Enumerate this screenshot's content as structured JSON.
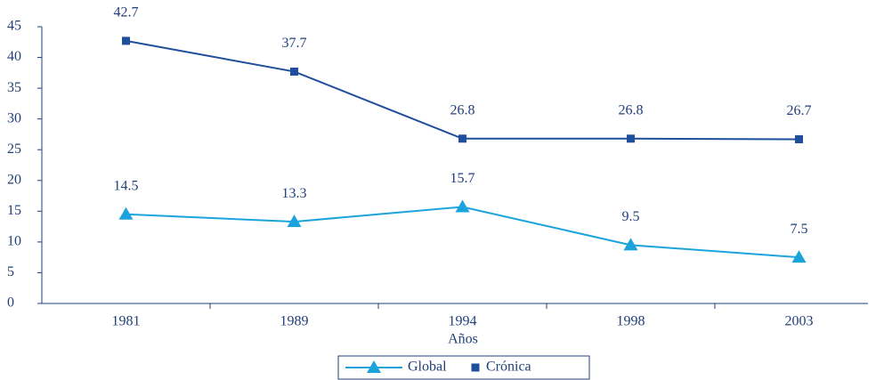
{
  "chart_data": {
    "type": "line",
    "x_label": "Años",
    "categories": [
      "1981",
      "1989",
      "1994",
      "1998",
      "2003"
    ],
    "series": [
      {
        "name": "Global",
        "color": "#1ba3dc",
        "marker": "triangle",
        "values": [
          14.5,
          13.3,
          15.7,
          9.5,
          7.5
        ]
      },
      {
        "name": "Crónica",
        "color": "#1f4e9c",
        "marker": "square",
        "values": [
          42.7,
          37.7,
          26.8,
          26.8,
          26.7
        ]
      }
    ],
    "ylim": [
      0,
      45
    ],
    "yticks": [
      0,
      5,
      10,
      15,
      20,
      25,
      30,
      35,
      40,
      45
    ],
    "legend": "bottom"
  }
}
